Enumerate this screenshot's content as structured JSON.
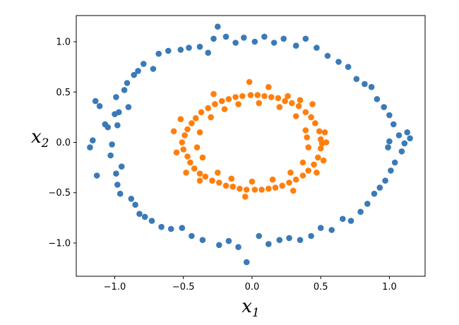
{
  "chart_data": {
    "type": "scatter",
    "xlabel": {
      "base": "x",
      "sub": "1"
    },
    "ylabel": {
      "base": "x",
      "sub": "2"
    },
    "xlim": [
      -1.28,
      1.26
    ],
    "ylim": [
      -1.33,
      1.26
    ],
    "x_ticks": [
      -1.0,
      -0.5,
      0.0,
      0.5,
      1.0
    ],
    "x_tick_labels": [
      "−1.0",
      "−0.5",
      "0.0",
      "0.5",
      "1.0"
    ],
    "y_ticks": [
      -1.0,
      -0.5,
      0.0,
      0.5,
      1.0
    ],
    "y_tick_labels": [
      "−1.0",
      "−0.5",
      "0.0",
      "0.5",
      "1.0"
    ],
    "grid": false,
    "legend": "none",
    "series": [
      {
        "color": "#3a7ab8",
        "shape": "ring",
        "radius": 1.0,
        "n_points": 250,
        "noise": 0.06,
        "points": [
          [
            -1.18,
            -0.05
          ],
          [
            -1.16,
            0.02
          ],
          [
            -1.14,
            0.41
          ],
          [
            -1.11,
            0.36
          ],
          [
            -1.13,
            -0.33
          ],
          [
            -1.07,
            0.18
          ],
          [
            -1.05,
            0.15
          ],
          [
            -1.03,
            -0.13
          ],
          [
            -1.02,
            -0.02
          ],
          [
            -0.99,
            0.45
          ],
          [
            -0.98,
            0.17
          ],
          [
            -0.98,
            -0.42
          ],
          [
            -0.96,
            -0.51
          ],
          [
            -0.93,
            0.52
          ],
          [
            -0.91,
            0.59
          ],
          [
            -0.88,
            -0.56
          ],
          [
            -0.86,
            0.67
          ],
          [
            -0.85,
            -0.62
          ],
          [
            -0.83,
            0.71
          ],
          [
            -0.82,
            -0.71
          ],
          [
            -0.79,
            0.78
          ],
          [
            -0.78,
            -0.74
          ],
          [
            -0.73,
            -0.78
          ],
          [
            -0.72,
            0.73
          ],
          [
            -0.68,
            0.88
          ],
          [
            -0.66,
            -0.84
          ],
          [
            -0.61,
            0.91
          ],
          [
            -0.59,
            -0.86
          ],
          [
            -0.52,
            0.92
          ],
          [
            -0.51,
            -0.85
          ],
          [
            -0.46,
            0.94
          ],
          [
            -0.44,
            -0.93
          ],
          [
            -0.38,
            0.95
          ],
          [
            -0.36,
            -0.97
          ],
          [
            -0.32,
            0.89
          ],
          [
            -0.28,
            1.03
          ],
          [
            -0.25,
            1.15
          ],
          [
            -0.24,
            -1.02
          ],
          [
            -0.19,
            1.05
          ],
          [
            -0.17,
            -0.98
          ],
          [
            -0.12,
            0.99
          ],
          [
            -0.1,
            -1.04
          ],
          [
            -0.06,
            1.04
          ],
          [
            -0.04,
            -1.19
          ],
          [
            0.02,
            1.0
          ],
          [
            0.05,
            -0.93
          ],
          [
            0.09,
            1.05
          ],
          [
            0.12,
            -1.01
          ],
          [
            0.16,
            0.99
          ],
          [
            0.2,
            -0.97
          ],
          [
            0.23,
            1.03
          ],
          [
            0.27,
            -0.95
          ],
          [
            0.32,
            0.96
          ],
          [
            0.35,
            -0.97
          ],
          [
            0.39,
            1.03
          ],
          [
            0.43,
            -0.93
          ],
          [
            0.47,
            0.94
          ],
          [
            0.5,
            -0.85
          ],
          [
            0.55,
            0.86
          ],
          [
            0.58,
            -0.87
          ],
          [
            0.63,
            0.8
          ],
          [
            0.66,
            -0.76
          ],
          [
            0.7,
            0.75
          ],
          [
            0.72,
            -0.78
          ],
          [
            0.76,
            0.63
          ],
          [
            0.79,
            -0.69
          ],
          [
            0.82,
            0.58
          ],
          [
            0.84,
            -0.61
          ],
          [
            0.87,
            0.55
          ],
          [
            0.89,
            -0.51
          ],
          [
            0.91,
            0.43
          ],
          [
            0.93,
            -0.45
          ],
          [
            0.96,
            0.35
          ],
          [
            0.97,
            -0.38
          ],
          [
            1.0,
            0.27
          ],
          [
            1.01,
            -0.28
          ],
          [
            1.03,
            0.18
          ],
          [
            1.04,
            -0.2
          ],
          [
            1.07,
            0.07
          ],
          [
            1.09,
            -0.09
          ],
          [
            1.13,
            0.1
          ],
          [
            1.15,
            0.04
          ],
          [
            1.11,
            -0.01
          ],
          [
            1.0,
            0.01
          ],
          [
            0.99,
            -0.05
          ],
          [
            -1.0,
            0.28
          ],
          [
            -0.97,
            0.3
          ],
          [
            -0.95,
            -0.24
          ],
          [
            -0.99,
            -0.31
          ],
          [
            -0.9,
            0.35
          ]
        ]
      },
      {
        "color": "#ff7f0e",
        "shape": "ring",
        "radius": 0.4,
        "n_points": 250,
        "noise": 0.05,
        "points": [
          [
            -0.51,
            0.0
          ],
          [
            -0.5,
            -0.07
          ],
          [
            -0.49,
            0.07
          ],
          [
            -0.47,
            0.13
          ],
          [
            -0.47,
            -0.14
          ],
          [
            -0.45,
            -0.2
          ],
          [
            -0.44,
            0.19
          ],
          [
            -0.42,
            -0.26
          ],
          [
            -0.41,
            0.24
          ],
          [
            -0.38,
            -0.31
          ],
          [
            -0.37,
            0.3
          ],
          [
            -0.34,
            -0.34
          ],
          [
            -0.32,
            0.34
          ],
          [
            -0.29,
            -0.38
          ],
          [
            -0.27,
            0.38
          ],
          [
            -0.24,
            -0.4
          ],
          [
            -0.22,
            0.41
          ],
          [
            -0.19,
            -0.43
          ],
          [
            -0.17,
            0.43
          ],
          [
            -0.14,
            -0.44
          ],
          [
            -0.12,
            0.45
          ],
          [
            -0.09,
            -0.46
          ],
          [
            -0.07,
            0.46
          ],
          [
            -0.04,
            -0.47
          ],
          [
            -0.01,
            0.47
          ],
          [
            0.02,
            -0.47
          ],
          [
            0.04,
            0.47
          ],
          [
            0.07,
            -0.47
          ],
          [
            0.09,
            0.46
          ],
          [
            0.12,
            -0.46
          ],
          [
            0.14,
            0.45
          ],
          [
            0.17,
            -0.45
          ],
          [
            0.19,
            0.44
          ],
          [
            0.22,
            -0.43
          ],
          [
            0.24,
            0.41
          ],
          [
            0.27,
            -0.4
          ],
          [
            0.29,
            0.39
          ],
          [
            0.32,
            -0.37
          ],
          [
            0.34,
            0.36
          ],
          [
            0.37,
            -0.33
          ],
          [
            0.39,
            0.3
          ],
          [
            0.41,
            -0.28
          ],
          [
            0.43,
            0.25
          ],
          [
            0.45,
            -0.22
          ],
          [
            0.46,
            0.19
          ],
          [
            0.48,
            -0.15
          ],
          [
            0.49,
            0.11
          ],
          [
            0.5,
            -0.06
          ],
          [
            0.5,
            0.03
          ],
          [
            0.51,
            -0.01
          ],
          [
            -0.4,
            -0.05
          ],
          [
            -0.38,
            0.1
          ],
          [
            -0.36,
            -0.15
          ],
          [
            -0.3,
            0.25
          ],
          [
            -0.25,
            -0.3
          ],
          [
            -0.2,
            0.33
          ],
          [
            -0.15,
            -0.36
          ],
          [
            -0.1,
            0.38
          ],
          [
            0.0,
            -0.39
          ],
          [
            0.05,
            0.39
          ],
          [
            0.15,
            -0.37
          ],
          [
            0.2,
            0.35
          ],
          [
            0.28,
            -0.3
          ],
          [
            0.32,
            0.26
          ],
          [
            0.37,
            -0.2
          ],
          [
            0.39,
            0.12
          ],
          [
            0.41,
            -0.05
          ],
          [
            0.4,
            0.05
          ],
          [
            0.35,
            0.42
          ],
          [
            0.26,
            0.46
          ],
          [
            -0.57,
            0.11
          ],
          [
            -0.55,
            -0.1
          ],
          [
            -0.48,
            -0.3
          ],
          [
            -0.52,
            0.23
          ],
          [
            0.53,
            0.1
          ],
          [
            0.47,
            -0.3
          ],
          [
            0.52,
            -0.18
          ],
          [
            0.54,
            0.0
          ],
          [
            -0.02,
            0.6
          ],
          [
            -0.05,
            -0.54
          ],
          [
            -0.38,
            -0.38
          ],
          [
            0.12,
            0.55
          ],
          [
            0.3,
            -0.48
          ],
          [
            -0.28,
            0.48
          ],
          [
            0.44,
            0.38
          ]
        ]
      }
    ]
  }
}
